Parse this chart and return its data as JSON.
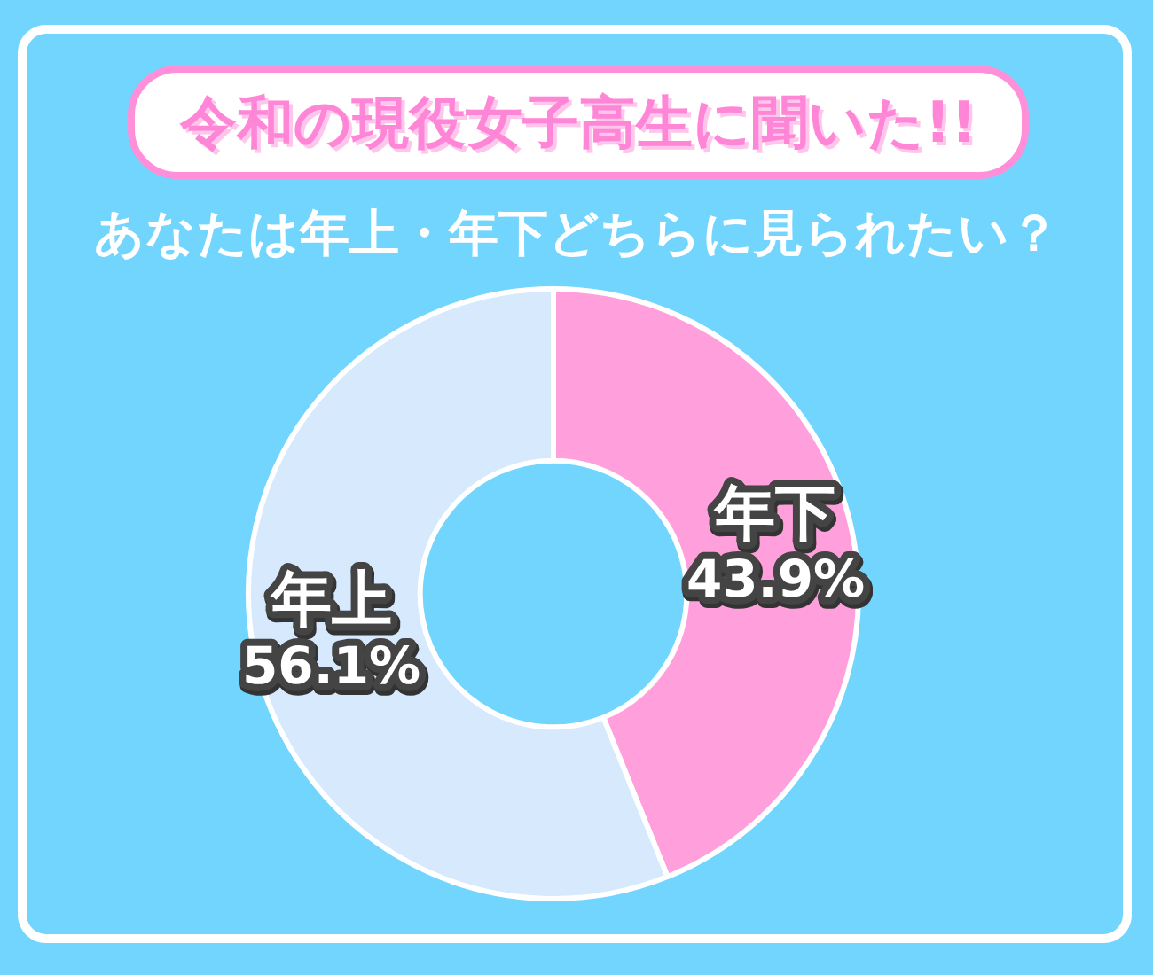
{
  "chart_data": {
    "type": "donut",
    "title": "令和の現役女子高生に聞いた!!",
    "subtitle": "あなたは年上・年下どちらに見られたい？",
    "categories": [
      "年下",
      "年上"
    ],
    "values": [
      43.9,
      56.1
    ],
    "colors": [
      "#ffa0dc",
      "#d6e9fd"
    ],
    "value_labels": [
      "43.9%",
      "56.1%"
    ]
  }
}
